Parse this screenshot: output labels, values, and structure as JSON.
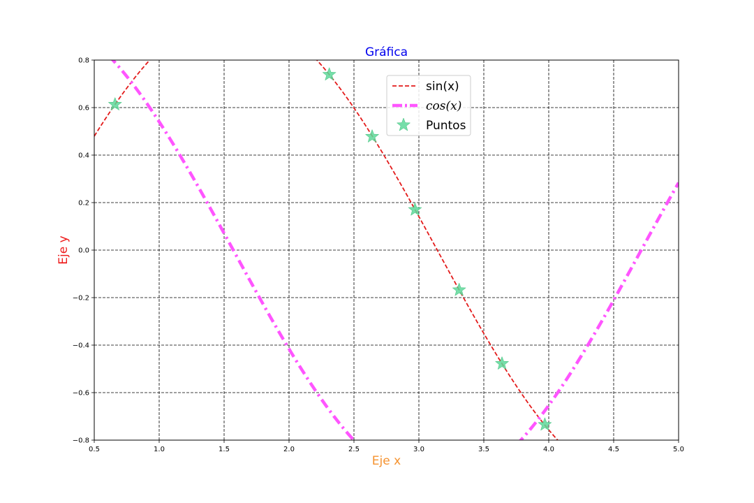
{
  "chart_data": {
    "type": "line",
    "title": "Gráfica",
    "xlabel": "Eje x",
    "ylabel": "Eje y",
    "xlim": [
      0.5,
      5.0
    ],
    "ylim": [
      -0.8,
      0.8
    ],
    "xticks": [
      "0.5",
      "1.0",
      "1.5",
      "2.0",
      "2.5",
      "3.0",
      "3.5",
      "4.0",
      "4.5",
      "5.0"
    ],
    "yticks": [
      "−0.8",
      "−0.6",
      "−0.4",
      "−0.2",
      "0.0",
      "0.2",
      "0.4",
      "0.6",
      "0.8"
    ],
    "grid": true,
    "legend_position": "upper-center",
    "colors": {
      "title": "#0000ee",
      "xlabel": "#f5922f",
      "ylabel": "#ee1c1c",
      "sin": "#e31a1a",
      "cos": "#ff55ff",
      "points": "#5ed89a"
    },
    "series": [
      {
        "name": "sin(x)",
        "function": "sin",
        "style": "dashed",
        "color": "#e31a1a"
      },
      {
        "name": "cos(x)",
        "function": "cos",
        "style": "dashdot",
        "color": "#ff55ff"
      },
      {
        "name": "Puntos",
        "style": "star-markers",
        "color": "#5ed89a",
        "points": [
          {
            "x": 0.66,
            "y": 0.613
          },
          {
            "x": 2.31,
            "y": 0.739
          },
          {
            "x": 2.64,
            "y": 0.478
          },
          {
            "x": 2.97,
            "y": 0.17
          },
          {
            "x": 3.31,
            "y": -0.168
          },
          {
            "x": 3.64,
            "y": -0.478
          },
          {
            "x": 3.97,
            "y": -0.735
          }
        ]
      }
    ]
  }
}
